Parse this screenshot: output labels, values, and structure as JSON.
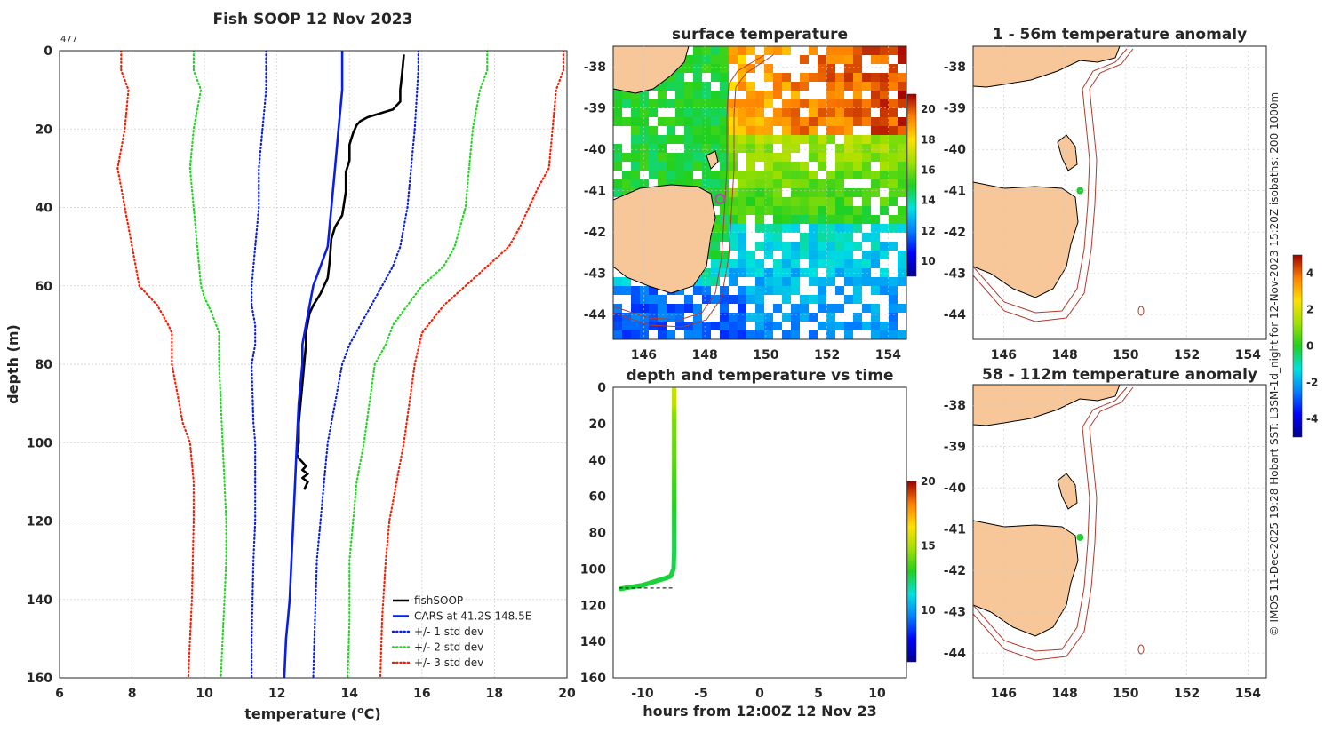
{
  "colors": {
    "fishsoop": "#000000",
    "cars": "#0a1ee6",
    "std1": "#0a1ee6",
    "std2": "#1fd81f",
    "std3": "#ff1a00",
    "land": "#f7c79a",
    "coast": "#000000",
    "isobath": "#b03a2e",
    "marker": "#1fcf2f",
    "marker_ring": "#c040c0"
  },
  "side_note": "© IMOS 11-Dec-2025 19:28 Hobart SST: L3SM-1d_night for 12-Nov-2023 15:20Z isobaths: 200  1000m",
  "chart_data": [
    {
      "id": "profile",
      "type": "line",
      "title": "Fish SOOP 12 Nov 2023",
      "corner_label": "477",
      "xlabel": "temperature (°C)",
      "xlabel_text": "temperature (",
      "xlabel_sup": "o",
      "xlabel_unit": "C)",
      "ylabel": "depth (m)",
      "xlim": [
        6,
        20
      ],
      "ylim": [
        0,
        160
      ],
      "y_reversed": true,
      "grid": true,
      "xticks": [
        "6",
        "8",
        "10",
        "12",
        "14",
        "16",
        "18",
        "20"
      ],
      "yticks": [
        "0",
        "20",
        "40",
        "60",
        "80",
        "100",
        "120",
        "140",
        "160"
      ],
      "legend_position": "bottom-right",
      "legend": [
        "fishSOOP",
        "CARS at 41.2S 148.5E",
        "+/- 1 std dev",
        "+/- 2 std dev",
        "+/- 3 std dev"
      ],
      "series": [
        {
          "name": "fishSOOP",
          "style": "solid",
          "color": "#000000",
          "temp": [
            15.5,
            15.45,
            15.4,
            15.4,
            15.3,
            15.2,
            14.5,
            14.3,
            14.2,
            14.1,
            14.0,
            14.0,
            13.9,
            13.9,
            13.8,
            13.6,
            13.5,
            13.45,
            13.4,
            13.3,
            13.2,
            13.0,
            12.9,
            12.8,
            12.8,
            12.75,
            12.7,
            12.65,
            12.6,
            12.6,
            12.55,
            12.6,
            12.7,
            12.8,
            12.7,
            12.85,
            12.7,
            12.85,
            12.75
          ],
          "depth": [
            1,
            6,
            10,
            13,
            14,
            15,
            17,
            18,
            19,
            21,
            24,
            28,
            31,
            36,
            42,
            45,
            48,
            54,
            58,
            60,
            62,
            65,
            67,
            72,
            75,
            80,
            85,
            90,
            95,
            100,
            103,
            104,
            105,
            106,
            107,
            108,
            109,
            110,
            112
          ]
        },
        {
          "name": "CARS at 41.2S 148.5E",
          "style": "solid",
          "color": "#0a1ee6",
          "temp": [
            13.8,
            13.8,
            13.7,
            13.6,
            13.5,
            13.4,
            13.2,
            13.0,
            12.9,
            12.8,
            12.7,
            12.7,
            12.6,
            12.55,
            12.5,
            12.45,
            12.4,
            12.35,
            12.3,
            12.25,
            12.2
          ],
          "depth": [
            0,
            10,
            20,
            30,
            40,
            50,
            55,
            60,
            65,
            70,
            75,
            80,
            90,
            100,
            110,
            120,
            130,
            140,
            145,
            150,
            160
          ]
        },
        {
          "name": "CARS -1 std dev",
          "style": "dotted",
          "color": "#0a1ee6",
          "temp": [
            11.7,
            11.7,
            11.6,
            11.5,
            11.5,
            11.4,
            11.35,
            11.3,
            11.3,
            11.4,
            11.4,
            11.3,
            11.35,
            11.4,
            11.4,
            11.4,
            11.35,
            11.3,
            11.3
          ],
          "depth": [
            0,
            10,
            20,
            30,
            40,
            50,
            55,
            60,
            65,
            70,
            75,
            80,
            95,
            100,
            110,
            120,
            130,
            150,
            160
          ]
        },
        {
          "name": "CARS +1 std dev",
          "style": "dotted",
          "color": "#0a1ee6",
          "temp": [
            15.9,
            15.9,
            15.8,
            15.7,
            15.6,
            15.4,
            15.2,
            14.9,
            14.6,
            14.3,
            14.0,
            13.8,
            13.6,
            13.4,
            13.3,
            13.2,
            13.1,
            13.05,
            13.0
          ],
          "depth": [
            0,
            5,
            20,
            30,
            40,
            50,
            55,
            60,
            65,
            70,
            75,
            80,
            90,
            100,
            110,
            120,
            130,
            145,
            160
          ]
        },
        {
          "name": "CARS -2 std dev",
          "style": "dotted",
          "color": "#1fd81f",
          "temp": [
            9.7,
            9.7,
            9.9,
            9.7,
            9.6,
            9.7,
            9.8,
            9.9,
            10.0,
            10.2,
            10.4,
            10.4,
            10.5,
            10.55,
            10.6,
            10.6,
            10.55,
            10.5,
            10.45
          ],
          "depth": [
            0,
            5,
            10,
            20,
            30,
            40,
            50,
            60,
            63,
            67,
            72,
            80,
            100,
            110,
            120,
            130,
            140,
            150,
            160
          ]
        },
        {
          "name": "CARS +2 std dev",
          "style": "dotted",
          "color": "#1fd81f",
          "temp": [
            17.8,
            17.8,
            17.6,
            17.4,
            17.3,
            17.2,
            16.9,
            16.6,
            16.0,
            15.6,
            15.2,
            15.0,
            14.7,
            14.4,
            14.2,
            14.1,
            14.0,
            14.0,
            13.95
          ],
          "depth": [
            0,
            5,
            10,
            20,
            30,
            40,
            50,
            55,
            60,
            65,
            70,
            75,
            80,
            100,
            110,
            120,
            130,
            145,
            160
          ]
        },
        {
          "name": "CARS -3 std dev",
          "style": "dotted",
          "color": "#ff1a00",
          "temp": [
            7.7,
            7.7,
            7.9,
            7.8,
            7.6,
            7.8,
            8.0,
            8.2,
            8.7,
            9.0,
            9.1,
            9.1,
            9.4,
            9.6,
            9.7,
            9.7,
            9.65,
            9.6,
            9.55
          ],
          "depth": [
            0,
            5,
            10,
            20,
            30,
            40,
            50,
            60,
            65,
            70,
            72,
            80,
            95,
            100,
            110,
            120,
            140,
            150,
            160
          ]
        },
        {
          "name": "CARS +3 std dev",
          "style": "dotted",
          "color": "#ff1a00",
          "temp": [
            19.9,
            19.9,
            19.7,
            19.6,
            19.5,
            19.2,
            18.7,
            18.4,
            17.8,
            17.2,
            16.6,
            16.0,
            15.8,
            15.5,
            15.3,
            15.1,
            15.0,
            14.9,
            14.85
          ],
          "depth": [
            0,
            5,
            10,
            20,
            30,
            35,
            45,
            50,
            55,
            60,
            65,
            72,
            80,
            100,
            110,
            120,
            130,
            145,
            160
          ]
        }
      ]
    },
    {
      "id": "sst_map",
      "type": "heatmap",
      "title": "surface temperature",
      "xticks": [
        "146",
        "148",
        "150",
        "152",
        "154"
      ],
      "yticks": [
        "-38",
        "-39",
        "-40",
        "-41",
        "-42",
        "-43",
        "-44"
      ],
      "xlim": [
        145,
        154.6
      ],
      "ylim": [
        -44.6,
        -37.5
      ],
      "colorbar_ticks": [
        "20",
        "18",
        "16",
        "14",
        "12",
        "10"
      ],
      "colorbar_range": [
        9,
        21
      ],
      "marker": {
        "lon": 148.5,
        "lat": -41.2
      }
    },
    {
      "id": "depth_time",
      "type": "scatter",
      "title": "depth and temperature vs time",
      "xlabel": "hours from 12:00Z 12 Nov 23",
      "xlim": [
        -12.5,
        12.5
      ],
      "ylim": [
        0,
        160
      ],
      "y_reversed": true,
      "xticks": [
        "-10",
        "-5",
        "0",
        "5",
        "10"
      ],
      "yticks": [
        "0",
        "20",
        "40",
        "60",
        "80",
        "100",
        "120",
        "140",
        "160"
      ],
      "colorbar_ticks": [
        "20",
        "15",
        "10"
      ],
      "colorbar_range": [
        6,
        20
      ],
      "hours": [
        -7.3,
        -7.3,
        -7.3,
        -7.3,
        -7.3,
        -7.3,
        -7.3,
        -7.3,
        -7.3,
        -7.3,
        -7.3,
        -7.3,
        -7.35,
        -7.6,
        -8.0,
        -8.5,
        -9.0,
        -9.5,
        -10.0,
        -10.5,
        -11.0,
        -11.5,
        -11.9
      ],
      "depth": [
        1,
        5,
        10,
        15,
        20,
        30,
        40,
        50,
        60,
        70,
        80,
        90,
        100,
        104,
        105,
        106,
        107,
        108,
        109,
        109.5,
        110,
        110.5,
        111
      ],
      "temp": [
        15.5,
        15.4,
        15.3,
        14.5,
        14.2,
        14.0,
        13.8,
        13.5,
        13.2,
        12.9,
        12.7,
        12.6,
        12.6,
        12.7,
        12.8,
        12.7,
        12.8,
        12.75,
        12.8,
        12.7,
        12.8,
        12.75,
        12.8
      ]
    },
    {
      "id": "anom_upper",
      "type": "heatmap",
      "title": "1 - 56m temperature anomaly",
      "xticks": [
        "146",
        "148",
        "150",
        "152",
        "154"
      ],
      "yticks": [
        "-38",
        "-39",
        "-40",
        "-41",
        "-42",
        "-43",
        "-44"
      ],
      "colorbar_ticks": [
        "4",
        "2",
        "0",
        "-2",
        "-4"
      ],
      "colorbar_range": [
        -5,
        5
      ],
      "marker": {
        "lon": 148.5,
        "lat": -41.0
      }
    },
    {
      "id": "anom_lower",
      "type": "heatmap",
      "title": "58 - 112m temperature anomaly",
      "xticks": [
        "146",
        "148",
        "150",
        "152",
        "154"
      ],
      "yticks": [
        "-38",
        "-39",
        "-40",
        "-41",
        "-42",
        "-43",
        "-44"
      ],
      "marker": {
        "lon": 148.5,
        "lat": -41.2
      }
    }
  ]
}
